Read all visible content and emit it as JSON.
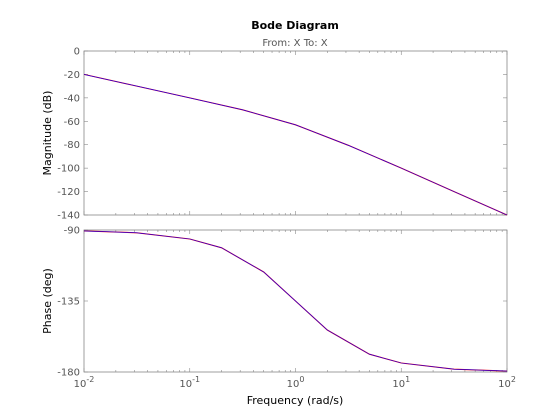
{
  "chart_data": {
    "type": "line",
    "title": "Bode Diagram",
    "subtitle": "From: X  To: X",
    "xlabel": "Frequency  (rad/s)",
    "xscale": "log",
    "xlim": [
      0.01,
      100
    ],
    "x_ticks": [
      {
        "value": 0.01,
        "base": "10",
        "exp": "-2"
      },
      {
        "value": 0.1,
        "base": "10",
        "exp": "-1"
      },
      {
        "value": 1,
        "base": "10",
        "exp": "0"
      },
      {
        "value": 10,
        "base": "10",
        "exp": "1"
      },
      {
        "value": 100,
        "base": "10",
        "exp": "2"
      }
    ],
    "grid": false,
    "line_colors": [
      "#ff0000",
      "#0000ff"
    ],
    "panels": [
      {
        "id": "magnitude",
        "ylabel": "Magnitude (dB)",
        "ylim": [
          -140,
          0
        ],
        "yticks": [
          "0",
          "-20",
          "-40",
          "-60",
          "-80",
          "-100",
          "-120",
          "-140"
        ],
        "ytick_values": [
          0,
          -20,
          -40,
          -60,
          -80,
          -100,
          -120,
          -140
        ],
        "x": [
          0.01,
          0.0316,
          0.1,
          0.316,
          1,
          3.16,
          10,
          31.6,
          100
        ],
        "y": [
          -20,
          -30,
          -40,
          -50.2,
          -63,
          -80.5,
          -100,
          -120,
          -140
        ]
      },
      {
        "id": "phase",
        "ylabel": "Phase (deg)",
        "ylim": [
          -180,
          -90
        ],
        "yticks": [
          "-90",
          "-135",
          "-180"
        ],
        "ytick_values": [
          -90,
          -135,
          -180
        ],
        "x": [
          0.01,
          0.0316,
          0.1,
          0.2,
          0.5,
          1,
          2,
          5,
          10,
          31.6,
          100
        ],
        "y": [
          -90.6,
          -91.8,
          -95.7,
          -101.3,
          -116.6,
          -135,
          -153.4,
          -168.7,
          -174.3,
          -178.2,
          -179.4
        ]
      }
    ]
  }
}
